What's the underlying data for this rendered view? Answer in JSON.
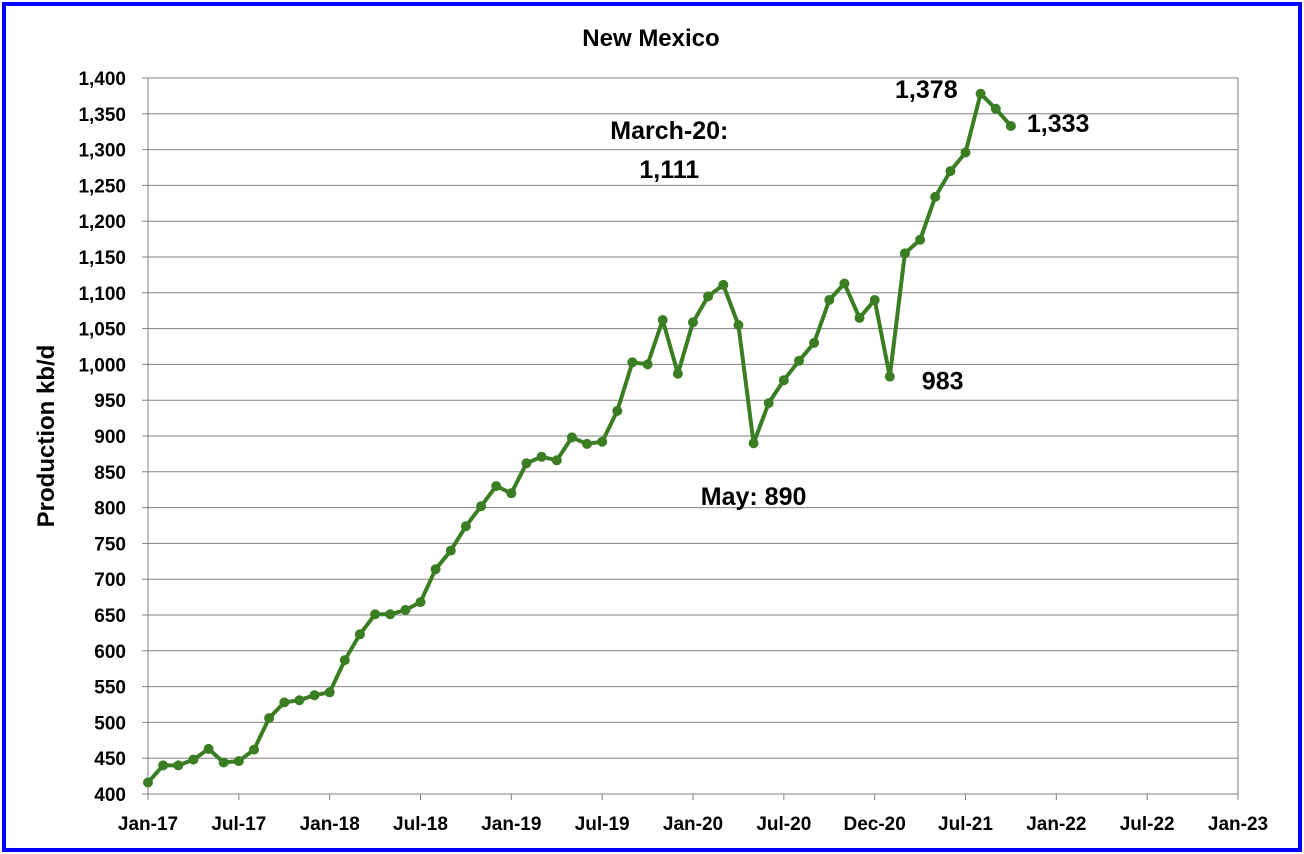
{
  "chart_data": {
    "type": "line",
    "title": "New Mexico",
    "xlabel": "",
    "ylabel": "Production kb/d",
    "ylim": [
      400,
      1400
    ],
    "ytick_step": 50,
    "yticks": [
      "400",
      "450",
      "500",
      "550",
      "600",
      "650",
      "700",
      "750",
      "800",
      "850",
      "900",
      "950",
      "1,000",
      "1,050",
      "1,100",
      "1,150",
      "1,200",
      "1,250",
      "1,300",
      "1,350",
      "1,400"
    ],
    "xlim_months": [
      0,
      72
    ],
    "xticks": [
      "Jan-17",
      "Jul-17",
      "Jan-18",
      "Jul-18",
      "Jan-19",
      "Jul-19",
      "Jan-20",
      "Jul-20",
      "Dec-20",
      "Jul-21",
      "Jan-22",
      "Jul-22",
      "Jan-23"
    ],
    "grid": true,
    "line_color": "#3a7d22",
    "series": [
      {
        "x": [
          "2017-01",
          "2017-02",
          "2017-03",
          "2017-04",
          "2017-05",
          "2017-06",
          "2017-07",
          "2017-08",
          "2017-09",
          "2017-10",
          "2017-11",
          "2017-12",
          "2018-01",
          "2018-02",
          "2018-03",
          "2018-04",
          "2018-05",
          "2018-06",
          "2018-07",
          "2018-08",
          "2018-09",
          "2018-10",
          "2018-11",
          "2018-12",
          "2019-01",
          "2019-02",
          "2019-03",
          "2019-04",
          "2019-05",
          "2019-06",
          "2019-07",
          "2019-08",
          "2019-09",
          "2019-10",
          "2019-11",
          "2019-12",
          "2020-01",
          "2020-02",
          "2020-03",
          "2020-04",
          "2020-05",
          "2020-06",
          "2020-07",
          "2020-08",
          "2020-09",
          "2020-10",
          "2020-11",
          "2020-12",
          "2021-01",
          "2021-02",
          "2021-03",
          "2021-04",
          "2021-05",
          "2021-06",
          "2021-07",
          "2021-08",
          "2021-09",
          "2021-10"
        ],
        "values": [
          416,
          440,
          440,
          448,
          463,
          444,
          446,
          462,
          506,
          528,
          531,
          538,
          542,
          587,
          623,
          651,
          651,
          657,
          668,
          714,
          740,
          774,
          802,
          830,
          820,
          862,
          871,
          866,
          898,
          889,
          892,
          935,
          1003,
          1000,
          1062,
          987,
          1059,
          1095,
          1111,
          1055,
          890,
          946,
          978,
          1005,
          1030,
          1090,
          1113,
          1065,
          1090,
          983,
          1155,
          1174,
          1234,
          1270,
          1296,
          1378,
          1357,
          1333
        ]
      }
    ],
    "annotations": [
      {
        "text": "March-20:",
        "at": "2020-03"
      },
      {
        "text": "1,111",
        "at": "2020-03"
      },
      {
        "text": "May: 890",
        "at": "2020-05"
      },
      {
        "text": "983",
        "at": "2021-02"
      },
      {
        "text": "1,378",
        "at": "2021-08"
      },
      {
        "text": "1,333",
        "at": "2021-10"
      }
    ]
  }
}
